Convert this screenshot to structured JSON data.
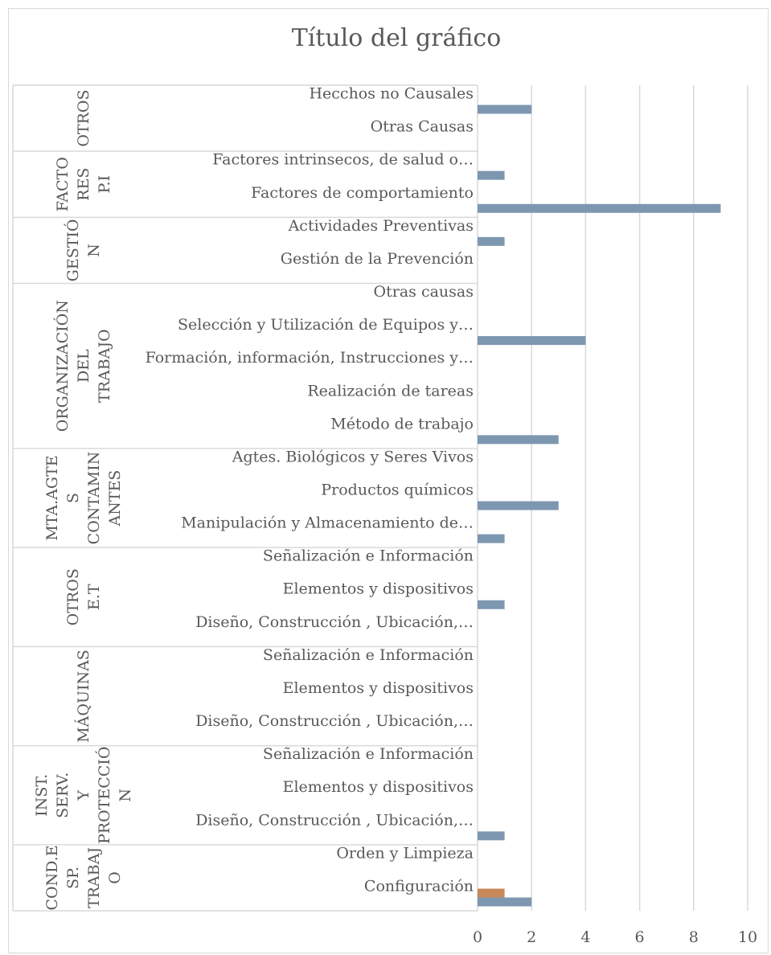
{
  "chart_data": {
    "type": "bar",
    "orientation": "horizontal",
    "title": "Título del gráfico",
    "xlim": [
      0,
      10
    ],
    "x_ticks": [
      "0",
      "2",
      "4",
      "6",
      "8",
      "10"
    ],
    "grid": true,
    "groups": [
      {
        "label": "OTROS",
        "categories": [
          "Hecchos no Causales",
          "Otras Causas"
        ]
      },
      {
        "label": "FACTO RES P.I",
        "categories": [
          "Factores intrinsecos, de salud o…",
          "Factores de comportamiento"
        ]
      },
      {
        "label": "GESTIÓ N",
        "categories": [
          "Actividades Preventivas",
          "Gestión de la Prevención"
        ]
      },
      {
        "label": "ORGANIZACIÓN DEL TRABAJO",
        "categories": [
          "Otras causas",
          "Selección y Utilización de Equipos y…",
          "Formación, información, Instrucciones y…",
          "Realización de tareas",
          "Método de trabajo"
        ]
      },
      {
        "label": "MTA.AGTE S CONTAMIN ANTES",
        "categories": [
          "Agtes. Biológicos y Seres Vivos",
          "Productos químicos",
          "Manipulación y Almacenamiento de…"
        ]
      },
      {
        "label": "OTROS E.T",
        "categories": [
          "Señalización e Información",
          "Elementos y dispositivos",
          "Diseño, Construcción , Ubicación,…"
        ]
      },
      {
        "label": "MÁQUINAS",
        "categories": [
          "Señalización e Información",
          "Elementos y dispositivos",
          "Diseño, Construcción , Ubicación,…"
        ]
      },
      {
        "label": "INST. SERV. Y PROTECCIÓ N",
        "categories": [
          "Señalización e Información",
          "Elementos y dispositivos",
          "Diseño, Construcción , Ubicación,…"
        ]
      },
      {
        "label": "COND.E SP. TRABAJ O",
        "categories": [
          "Orden y Limpieza",
          "Configuración"
        ]
      }
    ],
    "series": [
      {
        "color": "#7e97b0",
        "values": [
          2,
          0,
          1,
          9,
          1,
          0,
          0,
          4,
          0,
          0,
          3,
          0,
          3,
          1,
          0,
          1,
          0,
          0,
          0,
          0,
          0,
          0,
          1,
          0,
          2
        ]
      },
      {
        "color": "#c8885a",
        "values": [
          0,
          0,
          0,
          0,
          0,
          0,
          0,
          0,
          0,
          0,
          0,
          0,
          0,
          0,
          0,
          0,
          0,
          0,
          0,
          0,
          0,
          0,
          0,
          0,
          1
        ]
      }
    ]
  }
}
